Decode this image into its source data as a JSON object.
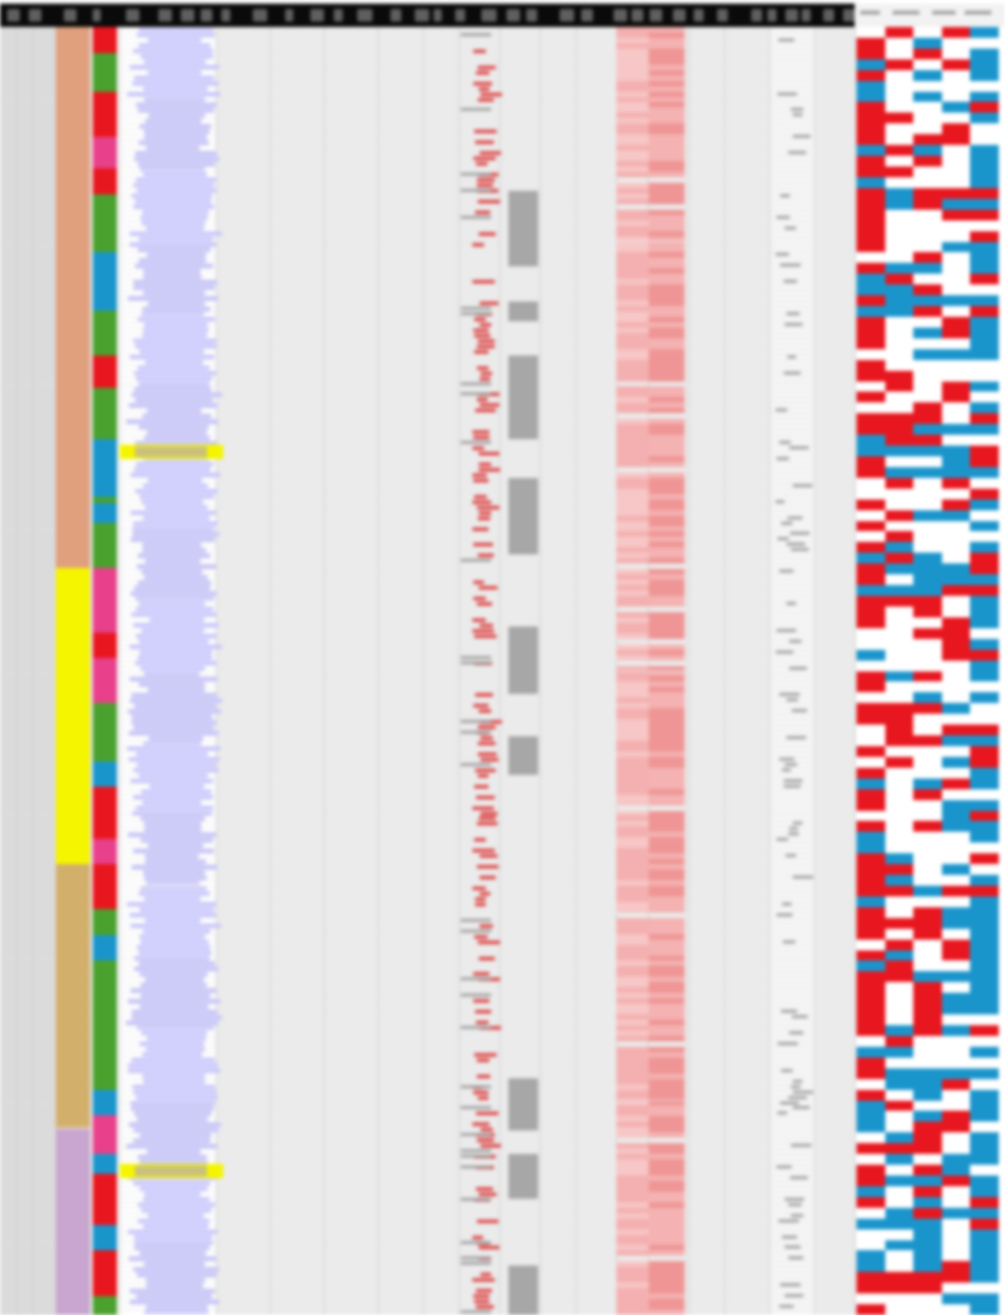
{
  "spreadsheet": {
    "colors": {
      "header": "#0a0a0a",
      "gray_column": "#d9d9d9",
      "lavender": "#c9c7fb",
      "red": "#e8161e",
      "blue": "#1a95cc",
      "green": "#4aa12e",
      "pink": "#e8408a",
      "yellow": "#f5f500",
      "peach": "#e0a07e",
      "tan": "#d2b06c",
      "mauve": "#c8a6cf"
    },
    "group_band": [
      {
        "color": "peach",
        "span": [
          0.0,
          0.42
        ]
      },
      {
        "color": "yellow",
        "span": [
          0.42,
          0.65
        ]
      },
      {
        "color": "tan",
        "span": [
          0.65,
          0.855
        ]
      },
      {
        "color": "mauve",
        "span": [
          0.855,
          1.0
        ]
      }
    ],
    "category_band": [
      {
        "color": "red",
        "span": [
          0.0,
          0.02
        ]
      },
      {
        "color": "green",
        "span": [
          0.02,
          0.05
        ]
      },
      {
        "color": "red",
        "span": [
          0.05,
          0.085
        ]
      },
      {
        "color": "pink",
        "span": [
          0.085,
          0.11
        ]
      },
      {
        "color": "red",
        "span": [
          0.11,
          0.13
        ]
      },
      {
        "color": "green",
        "span": [
          0.13,
          0.175
        ]
      },
      {
        "color": "blue",
        "span": [
          0.175,
          0.22
        ]
      },
      {
        "color": "green",
        "span": [
          0.22,
          0.255
        ]
      },
      {
        "color": "red",
        "span": [
          0.255,
          0.28
        ]
      },
      {
        "color": "green",
        "span": [
          0.28,
          0.32
        ]
      },
      {
        "color": "blue",
        "span": [
          0.32,
          0.365
        ]
      },
      {
        "color": "green",
        "span": [
          0.365,
          0.37
        ]
      },
      {
        "color": "blue",
        "span": [
          0.37,
          0.385
        ]
      },
      {
        "color": "green",
        "span": [
          0.385,
          0.42
        ]
      },
      {
        "color": "pink",
        "span": [
          0.42,
          0.47
        ]
      },
      {
        "color": "red",
        "span": [
          0.47,
          0.49
        ]
      },
      {
        "color": "pink",
        "span": [
          0.49,
          0.525
        ]
      },
      {
        "color": "green",
        "span": [
          0.525,
          0.57
        ]
      },
      {
        "color": "blue",
        "span": [
          0.57,
          0.59
        ]
      },
      {
        "color": "red",
        "span": [
          0.59,
          0.63
        ]
      },
      {
        "color": "pink",
        "span": [
          0.63,
          0.65
        ]
      },
      {
        "color": "red",
        "span": [
          0.65,
          0.685
        ]
      },
      {
        "color": "green",
        "span": [
          0.685,
          0.705
        ]
      },
      {
        "color": "blue",
        "span": [
          0.705,
          0.725
        ]
      },
      {
        "color": "green",
        "span": [
          0.725,
          0.825
        ]
      },
      {
        "color": "blue",
        "span": [
          0.825,
          0.845
        ]
      },
      {
        "color": "pink",
        "span": [
          0.845,
          0.875
        ]
      },
      {
        "color": "blue",
        "span": [
          0.875,
          0.89
        ]
      },
      {
        "color": "red",
        "span": [
          0.89,
          0.93
        ]
      },
      {
        "color": "blue",
        "span": [
          0.93,
          0.95
        ]
      },
      {
        "color": "red",
        "span": [
          0.95,
          0.985
        ]
      },
      {
        "color": "green",
        "span": [
          0.985,
          1.0
        ]
      }
    ],
    "highlighted_rows": [
      0.33,
      0.888
    ],
    "row_count": 240,
    "heatmap_columns": 5
  }
}
